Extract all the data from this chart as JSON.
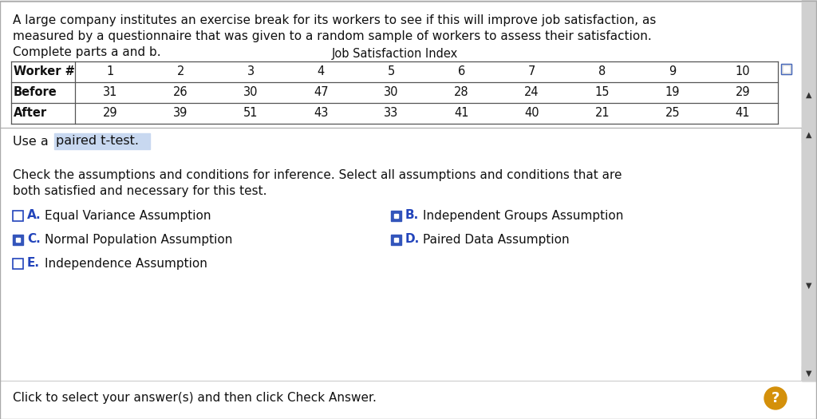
{
  "white": "#ffffff",
  "light_gray_bg": "#f0f0f0",
  "intro_text_line1": "A large company institutes an exercise break for its workers to see if this will improve job satisfaction, as",
  "intro_text_line2": "measured by a questionnaire that was given to a random sample of workers to assess their satisfaction.",
  "intro_text_line3": "Complete parts a and b.",
  "table_title": "Job Satisfaction Index",
  "table_headers": [
    "Worker #",
    "1",
    "2",
    "3",
    "4",
    "5",
    "6",
    "7",
    "8",
    "9",
    "10"
  ],
  "before_row": [
    "Before",
    "31",
    "26",
    "30",
    "47",
    "30",
    "28",
    "24",
    "15",
    "19",
    "29"
  ],
  "after_row": [
    "After",
    "29",
    "39",
    "51",
    "43",
    "33",
    "41",
    "40",
    "21",
    "25",
    "41"
  ],
  "use_prefix": "Use a",
  "use_highlight": " paired t-test.",
  "check_text_line1": "Check the assumptions and conditions for inference. Select all assumptions and conditions that are",
  "check_text_line2": "both satisfied and necessary for this test.",
  "options": [
    {
      "letter": "A",
      "text": "Equal Variance Assumption",
      "checked": false,
      "col": 0,
      "row": 0
    },
    {
      "letter": "B",
      "text": "Independent Groups Assumption",
      "checked": true,
      "col": 1,
      "row": 0
    },
    {
      "letter": "C",
      "text": "Normal Population Assumption",
      "checked": true,
      "col": 0,
      "row": 1
    },
    {
      "letter": "D",
      "text": "Paired Data Assumption",
      "checked": true,
      "col": 1,
      "row": 1
    },
    {
      "letter": "E",
      "text": "Independence Assumption",
      "checked": false,
      "col": 0,
      "row": 2
    }
  ],
  "footer_text": "Click to select your answer(s) and then click Check Answer.",
  "checked_color": "#3355bb",
  "text_color": "#111111",
  "border_color": "#aaaaaa",
  "table_line_color": "#555555",
  "highlight_bg": "#c8d8f0",
  "scrollbar_bg": "#c0c0c0",
  "scrollbar_thumb": "#909090",
  "scrollbar_arrow_bg": "#d0d0d0",
  "letter_color": "#2244bb",
  "footer_sep_color": "#cccccc",
  "question_btn_color": "#d4900a"
}
